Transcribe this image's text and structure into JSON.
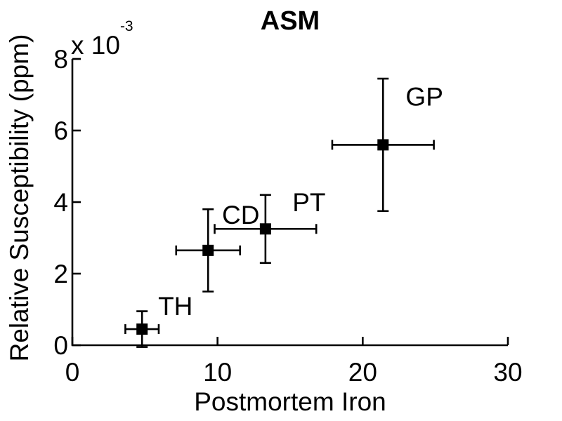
{
  "chart_data": {
    "type": "scatter",
    "title": "ASM",
    "xlabel": "Postmortem Iron",
    "ylabel": "Relative Susceptibility (ppm)",
    "y_multiplier": {
      "mantissa": "x 10",
      "exponent": "-3"
    },
    "y_scale_note": "y values given in units of 1e-3 ppm",
    "xlim": [
      0,
      30
    ],
    "ylim_e3": [
      0,
      8
    ],
    "xticks": [
      0,
      10,
      20,
      30
    ],
    "yticks_e3": [
      0,
      2,
      4,
      6,
      8
    ],
    "grid": false,
    "legend": false,
    "marker": "filled-square",
    "color": "#000000",
    "points": [
      {
        "label": "TH",
        "x": 4.8,
        "y_e3": 0.45,
        "xerr": 1.15,
        "yerr_e3": 0.5,
        "label_pos": {
          "x": 7.1,
          "y_e3": 1.1
        }
      },
      {
        "label": "CD",
        "x": 9.35,
        "y_e3": 2.65,
        "xerr": 2.2,
        "yerr_e3": 1.15,
        "label_pos": {
          "x": 11.6,
          "y_e3": 3.65
        }
      },
      {
        "label": "PT",
        "x": 13.3,
        "y_e3": 3.25,
        "xerr": 3.5,
        "yerr_e3": 0.95,
        "label_pos": {
          "x": 16.3,
          "y_e3": 4.0
        }
      },
      {
        "label": "GP",
        "x": 21.4,
        "y_e3": 5.6,
        "xerr": 3.5,
        "yerr_e3": 1.85,
        "label_pos": {
          "x": 24.25,
          "y_e3": 6.95
        }
      }
    ]
  }
}
